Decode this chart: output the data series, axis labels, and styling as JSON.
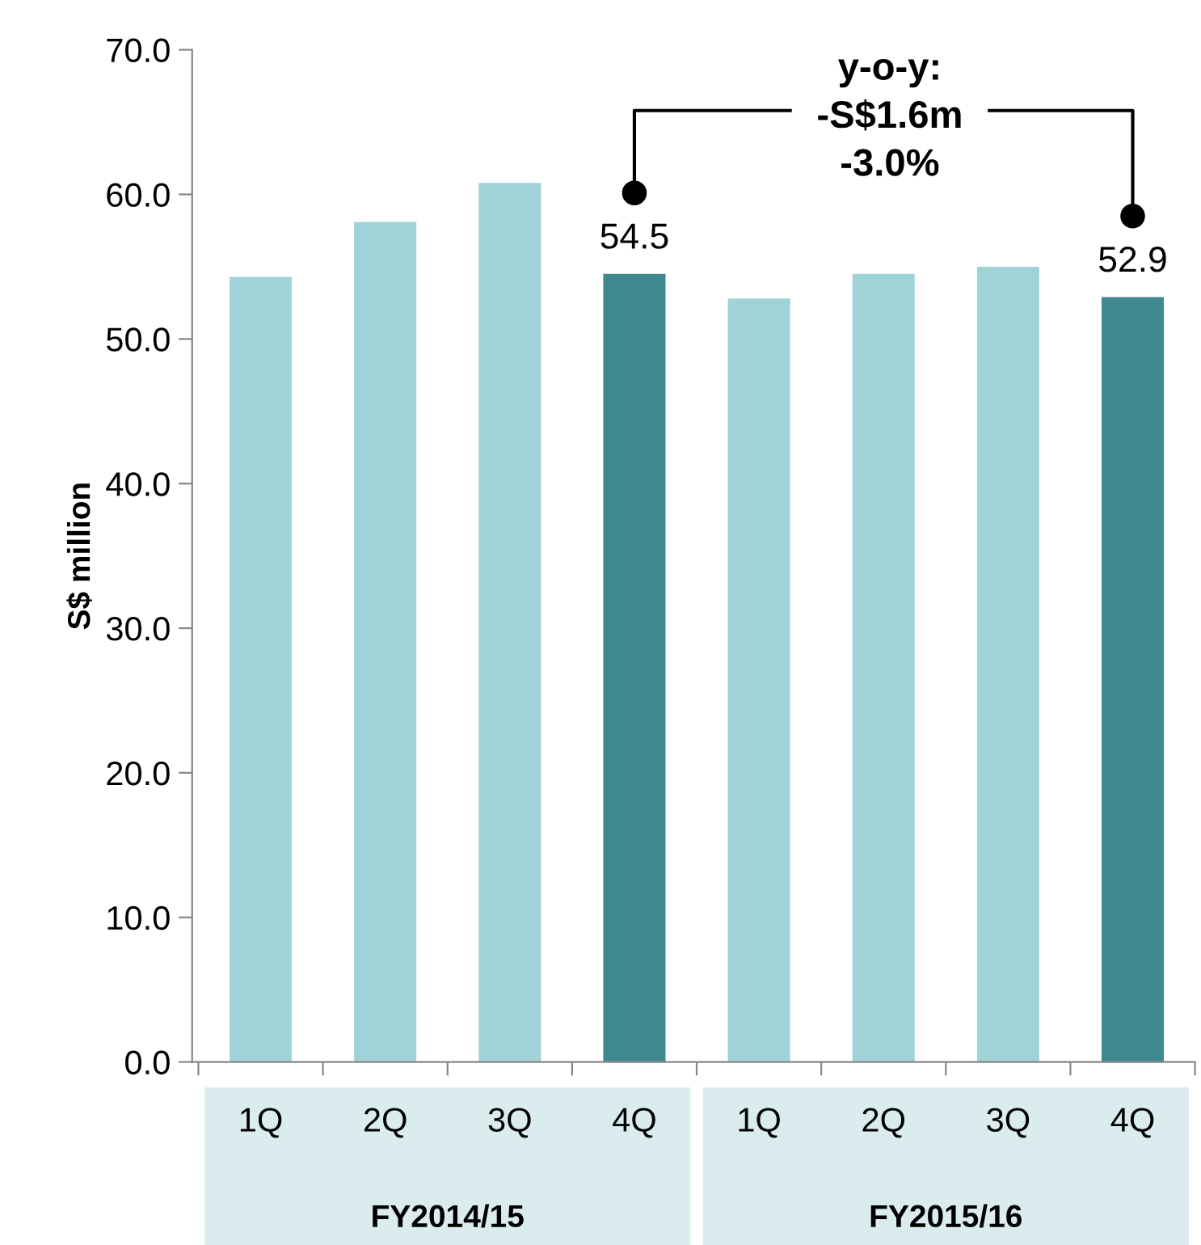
{
  "chart_data": {
    "type": "bar",
    "ylabel": "S$ million",
    "categories": [
      "1Q",
      "2Q",
      "3Q",
      "4Q",
      "1Q",
      "2Q",
      "3Q",
      "4Q"
    ],
    "values": [
      54.3,
      58.1,
      60.8,
      54.5,
      52.8,
      54.5,
      55.0,
      52.9
    ],
    "colors": [
      "#a0d3d7",
      "#a0d3d7",
      "#a0d3d7",
      "#3e8a8f",
      "#a0d3d7",
      "#a0d3d7",
      "#a0d3d7",
      "#3e8a8f"
    ],
    "value_labels": [
      null,
      null,
      null,
      "54.5",
      null,
      null,
      null,
      "52.9"
    ],
    "ylim": [
      0,
      70
    ],
    "yticks": [
      {
        "value": 0,
        "label": "0.0"
      },
      {
        "value": 10,
        "label": "10.0"
      },
      {
        "value": 20,
        "label": "20.0"
      },
      {
        "value": 30,
        "label": "30.0"
      },
      {
        "value": 40,
        "label": "40.0"
      },
      {
        "value": 50,
        "label": "50.0"
      },
      {
        "value": 60,
        "label": "60.0"
      },
      {
        "value": 70,
        "label": "70.0"
      }
    ],
    "grid": false,
    "legend": false,
    "annotations": [
      "y-o-y:\n-S$1.6m\n-3.0%",
      "FY2014/15",
      "FY2015/16"
    ]
  }
}
